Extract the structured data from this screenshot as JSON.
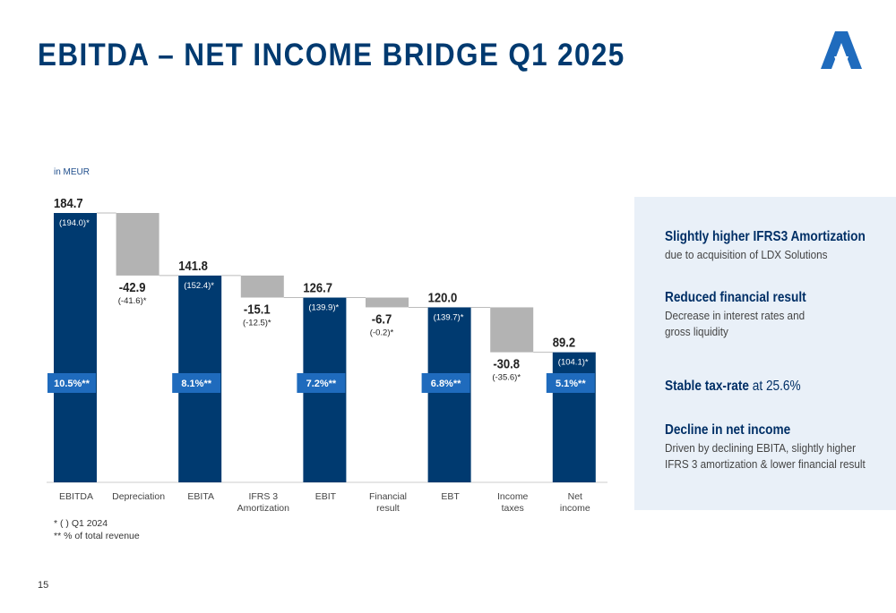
{
  "page": {
    "title": "EBITDA – NET INCOME BRIDGE Q1 2025",
    "page_number": "15",
    "unit_label": "in MEUR",
    "footnotes": [
      "* (  ) Q1 2024",
      "** % of total revenue"
    ]
  },
  "colors": {
    "title": "#003a70",
    "total_bar": "#003a70",
    "delta_bar": "#b3b3b3",
    "badge": "#1f6bbd",
    "panel_bg": "#e9f0f8",
    "panel_heading": "#002f66"
  },
  "side_panel": [
    {
      "heading": "Slightly higher IFRS3 Amortization",
      "heading_tail": "",
      "text": [
        "due to acquisition of LDX Solutions"
      ]
    },
    {
      "heading": "Reduced financial result",
      "heading_tail": "",
      "text": [
        "Decrease in interest rates and",
        "gross liquidity"
      ]
    },
    {
      "heading": "Stable tax-rate",
      "heading_tail": " at 25.6%",
      "text": []
    },
    {
      "heading": "Decline in net income",
      "heading_tail": "",
      "text": [
        "Driven by declining EBITA, slightly higher",
        "IFRS 3 amortization & lower financial result"
      ]
    }
  ],
  "chart_data": {
    "type": "bar",
    "subtype": "waterfall",
    "unit": "MEUR",
    "categories": [
      "EBITDA",
      "Depreciation",
      "EBITA",
      "IFRS 3 Amortization",
      "EBIT",
      "Financial result",
      "EBT",
      "Income taxes",
      "Net income"
    ],
    "category_labels": [
      [
        "EBITDA"
      ],
      [
        "Depreciation"
      ],
      [
        "EBITA"
      ],
      [
        "IFRS 3",
        "Amortization"
      ],
      [
        "EBIT"
      ],
      [
        "Financial",
        "result"
      ],
      [
        "EBT"
      ],
      [
        "Income",
        "taxes"
      ],
      [
        "Net",
        "income"
      ]
    ],
    "kinds": [
      "total",
      "delta",
      "total",
      "delta",
      "total",
      "delta",
      "total",
      "delta",
      "total"
    ],
    "values": [
      184.7,
      -42.9,
      141.8,
      -15.1,
      126.7,
      -6.7,
      120.0,
      -30.8,
      89.2
    ],
    "value_labels": [
      "184.7",
      "-42.9",
      "141.8",
      "-15.1",
      "126.7",
      "-6.7",
      "120.0",
      "-30.8",
      "89.2"
    ],
    "prior_year_labels": [
      "(194.0)*",
      "(-41.6)*",
      "(152.4)*",
      "(-12.5)*",
      "(139.9)*",
      "(-0.2)*",
      "(139.7)*",
      "(-35.6)*",
      "(104.1)*"
    ],
    "margin_labels": [
      "10.5%**",
      "",
      "8.1%**",
      "",
      "7.2%**",
      "",
      "6.8%**",
      "",
      "5.1%**"
    ],
    "ylim": [
      0,
      184.7
    ]
  }
}
